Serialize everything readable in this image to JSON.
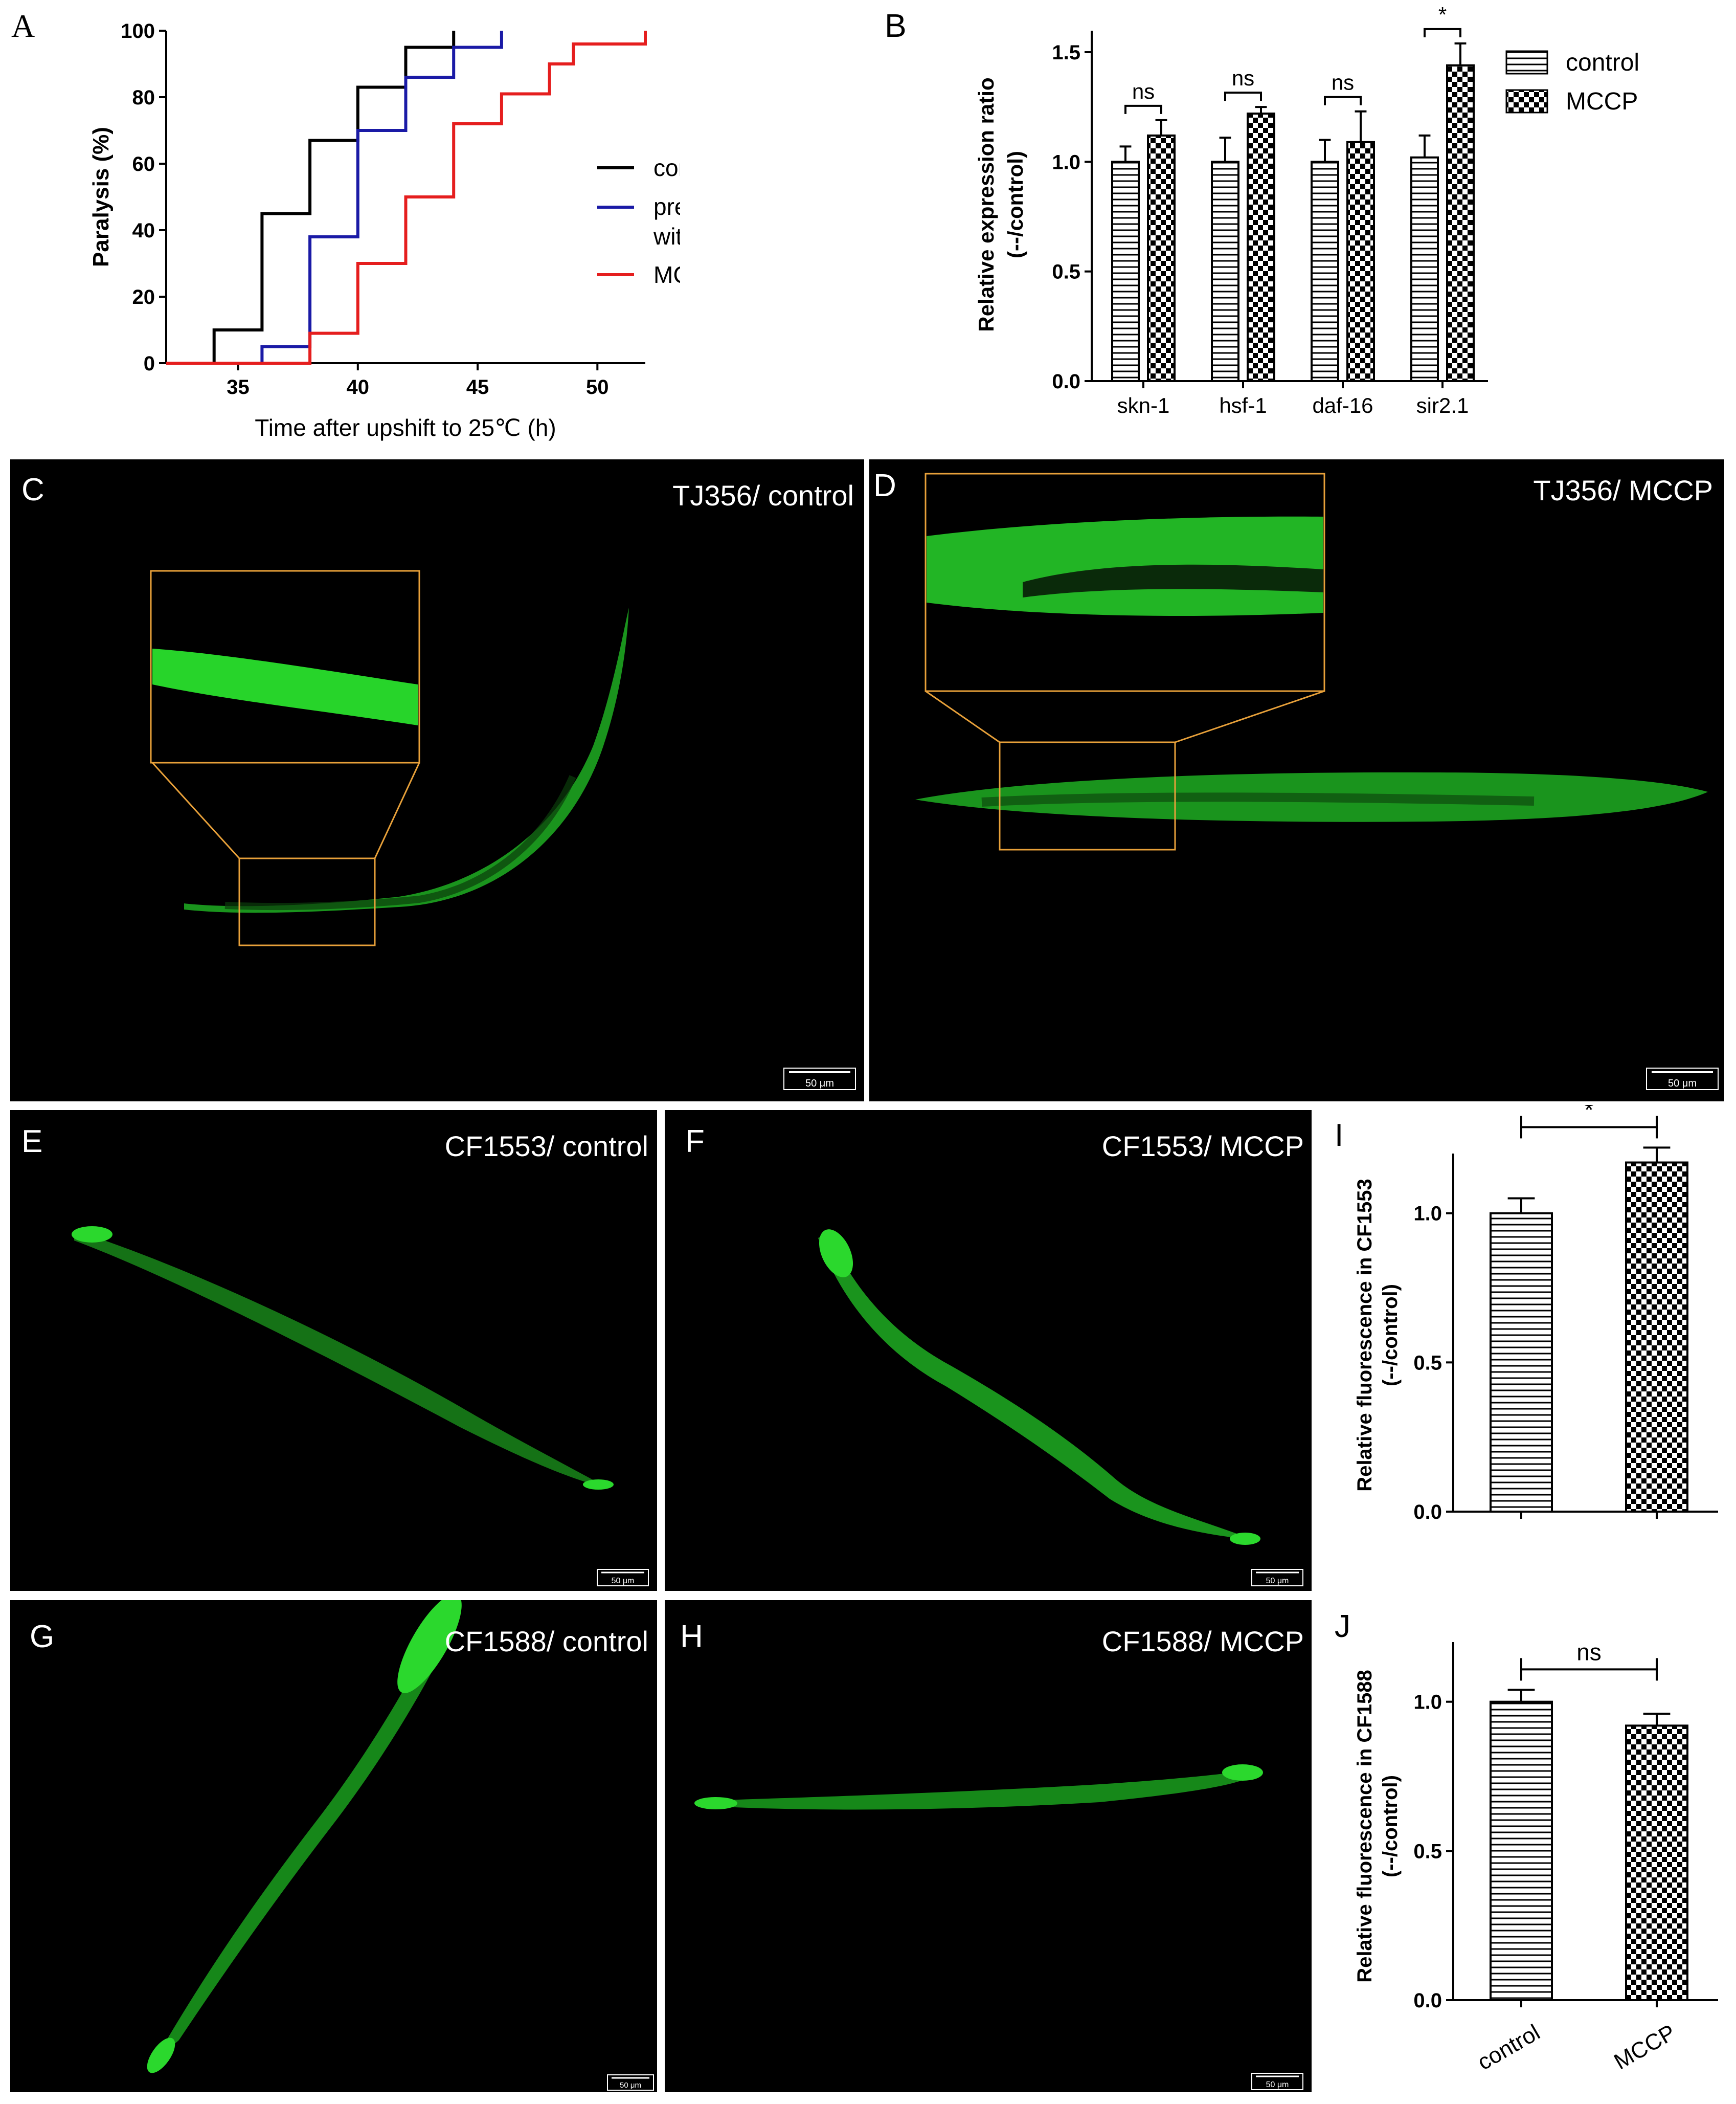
{
  "panel_labels": {
    "A": "A",
    "B": "B",
    "C": "C",
    "D": "D",
    "E": "E",
    "F": "F",
    "G": "G",
    "H": "H",
    "I": "I",
    "J": "J"
  },
  "image_labels": {
    "C": "TJ356/ control",
    "D": "TJ356/ MCCP",
    "E": "CF1553/ control",
    "F": "CF1553/ MCCP",
    "G": "CF1588/ control",
    "H": "CF1588/ MCCP"
  },
  "scale_bar": "50 μm",
  "colors": {
    "control": "#000000",
    "pretreated": "#1a1aa6",
    "mccp": "#e51e1e",
    "gfp": "#27d42a",
    "inset_box": "#e8a13a"
  },
  "chart_data": [
    {
      "id": "A",
      "type": "line",
      "xlabel": "Time after upshift to 25℃ (h)",
      "ylabel": "Paralysis (%)",
      "xlim": [
        32,
        52
      ],
      "ylim": [
        0,
        100
      ],
      "xticks": [
        35,
        40,
        45,
        50
      ],
      "yticks": [
        0,
        20,
        40,
        60,
        80,
        100
      ],
      "legend_position": "right",
      "series": [
        {
          "name": "control",
          "color": "#000000",
          "x": [
            32,
            34,
            34,
            36,
            36,
            38,
            38,
            40,
            40,
            42,
            42,
            44,
            44
          ],
          "y": [
            0,
            0,
            10,
            10,
            45,
            45,
            67,
            67,
            83,
            83,
            95,
            95,
            100
          ]
        },
        {
          "name": "pretreated with MCCP",
          "color": "#1a1aa6",
          "x": [
            32,
            36,
            36,
            38,
            38,
            40,
            40,
            42,
            42,
            44,
            44,
            46,
            46
          ],
          "y": [
            0,
            0,
            5,
            5,
            38,
            38,
            70,
            70,
            86,
            86,
            95,
            95,
            100
          ]
        },
        {
          "name": "MCCP",
          "color": "#e51e1e",
          "x": [
            32,
            38,
            38,
            40,
            40,
            42,
            42,
            44,
            44,
            46,
            46,
            48,
            48,
            49,
            49,
            50,
            50,
            52,
            52
          ],
          "y": [
            0,
            0,
            9,
            9,
            30,
            30,
            50,
            50,
            72,
            72,
            81,
            81,
            90,
            90,
            96,
            96,
            96,
            96,
            100
          ]
        }
      ]
    },
    {
      "id": "B",
      "type": "bar",
      "ylabel": "Relative expression ratio",
      "ylabel2": "(--/control)",
      "categories": [
        "skn-1",
        "hsf-1",
        "daf-16",
        "sir2.1"
      ],
      "ylim": [
        0,
        1.5
      ],
      "yticks": [
        "0.0",
        "0.5",
        "1.0",
        "1.5"
      ],
      "series": [
        {
          "name": "control",
          "values": [
            1.0,
            1.0,
            1.0,
            1.02
          ],
          "errors": [
            0.07,
            0.11,
            0.1,
            0.1
          ]
        },
        {
          "name": "MCCP",
          "values": [
            1.12,
            1.22,
            1.09,
            1.44
          ],
          "errors": [
            0.07,
            0.03,
            0.14,
            0.1
          ]
        }
      ],
      "significance": [
        "ns",
        "ns",
        "ns",
        "*"
      ]
    },
    {
      "id": "I",
      "type": "bar",
      "ylabel": "Relative fluorescence in CF1553",
      "ylabel2": "(--/control)",
      "categories": [
        "control",
        "MCCP"
      ],
      "ylim": [
        0,
        1.2
      ],
      "yticks": [
        "0.0",
        "0.5",
        "1.0"
      ],
      "values": [
        1.0,
        1.17
      ],
      "errors": [
        0.05,
        0.05
      ],
      "significance": "*"
    },
    {
      "id": "J",
      "type": "bar",
      "ylabel": "Relative fluorescence in CF1588",
      "ylabel2": "(--/control)",
      "categories": [
        "control",
        "MCCP"
      ],
      "ylim": [
        0,
        1.2
      ],
      "yticks": [
        "0.0",
        "0.5",
        "1.0"
      ],
      "values": [
        1.0,
        0.92
      ],
      "errors": [
        0.04,
        0.04
      ],
      "significance": "ns"
    }
  ]
}
